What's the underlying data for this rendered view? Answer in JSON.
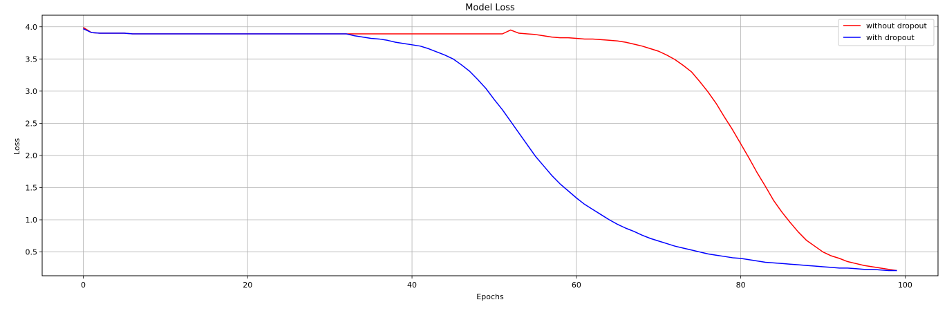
{
  "chart_data": {
    "type": "line",
    "title": "Model Loss",
    "xlabel": "Epochs",
    "ylabel": "Loss",
    "xlim": [
      -5,
      104
    ],
    "ylim": [
      0.13,
      4.18
    ],
    "xticks": [
      0,
      20,
      40,
      60,
      80,
      100
    ],
    "yticks": [
      0.5,
      1.0,
      1.5,
      2.0,
      2.5,
      3.0,
      3.5,
      4.0
    ],
    "ytick_labels": [
      "0.5",
      "1.0",
      "1.5",
      "2.0",
      "2.5",
      "3.0",
      "3.5",
      "4.0"
    ],
    "grid": true,
    "legend_position": "top-right",
    "series": [
      {
        "name": "without dropout",
        "color": "#ff0000",
        "x": [
          0,
          1,
          2,
          3,
          4,
          5,
          6,
          7,
          8,
          9,
          10,
          11,
          12,
          13,
          14,
          15,
          16,
          17,
          18,
          19,
          20,
          21,
          22,
          23,
          24,
          25,
          26,
          27,
          28,
          29,
          30,
          31,
          32,
          33,
          34,
          35,
          36,
          37,
          38,
          39,
          40,
          41,
          42,
          43,
          44,
          45,
          46,
          47,
          48,
          49,
          50,
          51,
          52,
          53,
          54,
          55,
          56,
          57,
          58,
          59,
          60,
          61,
          62,
          63,
          64,
          65,
          66,
          67,
          68,
          69,
          70,
          71,
          72,
          73,
          74,
          75,
          76,
          77,
          78,
          79,
          80,
          81,
          82,
          83,
          84,
          85,
          86,
          87,
          88,
          89,
          90,
          91,
          92,
          93,
          94,
          95,
          96,
          97,
          98,
          99
        ],
        "y": [
          3.99,
          3.91,
          3.9,
          3.9,
          3.9,
          3.9,
          3.89,
          3.89,
          3.89,
          3.89,
          3.89,
          3.89,
          3.89,
          3.89,
          3.89,
          3.89,
          3.89,
          3.89,
          3.89,
          3.89,
          3.89,
          3.89,
          3.89,
          3.89,
          3.89,
          3.89,
          3.89,
          3.89,
          3.89,
          3.89,
          3.89,
          3.89,
          3.89,
          3.89,
          3.89,
          3.89,
          3.89,
          3.89,
          3.89,
          3.89,
          3.89,
          3.89,
          3.89,
          3.89,
          3.89,
          3.89,
          3.89,
          3.89,
          3.89,
          3.89,
          3.89,
          3.89,
          3.95,
          3.9,
          3.89,
          3.88,
          3.86,
          3.84,
          3.83,
          3.83,
          3.82,
          3.81,
          3.81,
          3.8,
          3.79,
          3.78,
          3.76,
          3.73,
          3.7,
          3.66,
          3.62,
          3.56,
          3.49,
          3.4,
          3.3,
          3.15,
          2.99,
          2.81,
          2.6,
          2.4,
          2.18,
          1.96,
          1.73,
          1.52,
          1.3,
          1.12,
          0.96,
          0.81,
          0.68,
          0.59,
          0.5,
          0.44,
          0.4,
          0.35,
          0.32,
          0.29,
          0.27,
          0.25,
          0.23,
          0.21
        ]
      },
      {
        "name": "with dropout",
        "color": "#0000ff",
        "x": [
          0,
          1,
          2,
          3,
          4,
          5,
          6,
          7,
          8,
          9,
          10,
          11,
          12,
          13,
          14,
          15,
          16,
          17,
          18,
          19,
          20,
          21,
          22,
          23,
          24,
          25,
          26,
          27,
          28,
          29,
          30,
          31,
          32,
          33,
          34,
          35,
          36,
          37,
          38,
          39,
          40,
          41,
          42,
          43,
          44,
          45,
          46,
          47,
          48,
          49,
          50,
          51,
          52,
          53,
          54,
          55,
          56,
          57,
          58,
          59,
          60,
          61,
          62,
          63,
          64,
          65,
          66,
          67,
          68,
          69,
          70,
          71,
          72,
          73,
          74,
          75,
          76,
          77,
          78,
          79,
          80,
          81,
          82,
          83,
          84,
          85,
          86,
          87,
          88,
          89,
          90,
          91,
          92,
          93,
          94,
          95,
          96,
          97,
          98,
          99
        ],
        "y": [
          3.97,
          3.91,
          3.9,
          3.9,
          3.9,
          3.9,
          3.89,
          3.89,
          3.89,
          3.89,
          3.89,
          3.89,
          3.89,
          3.89,
          3.89,
          3.89,
          3.89,
          3.89,
          3.89,
          3.89,
          3.89,
          3.89,
          3.89,
          3.89,
          3.89,
          3.89,
          3.89,
          3.89,
          3.89,
          3.89,
          3.89,
          3.89,
          3.89,
          3.86,
          3.84,
          3.82,
          3.81,
          3.79,
          3.76,
          3.74,
          3.72,
          3.7,
          3.66,
          3.61,
          3.56,
          3.5,
          3.41,
          3.31,
          3.18,
          3.04,
          2.87,
          2.71,
          2.53,
          2.35,
          2.17,
          1.99,
          1.84,
          1.69,
          1.56,
          1.45,
          1.34,
          1.24,
          1.16,
          1.08,
          1.0,
          0.93,
          0.87,
          0.82,
          0.76,
          0.71,
          0.67,
          0.63,
          0.59,
          0.56,
          0.53,
          0.5,
          0.47,
          0.45,
          0.43,
          0.41,
          0.4,
          0.38,
          0.36,
          0.34,
          0.33,
          0.32,
          0.31,
          0.3,
          0.29,
          0.28,
          0.27,
          0.26,
          0.25,
          0.25,
          0.24,
          0.23,
          0.23,
          0.22,
          0.21,
          0.21
        ]
      }
    ]
  }
}
